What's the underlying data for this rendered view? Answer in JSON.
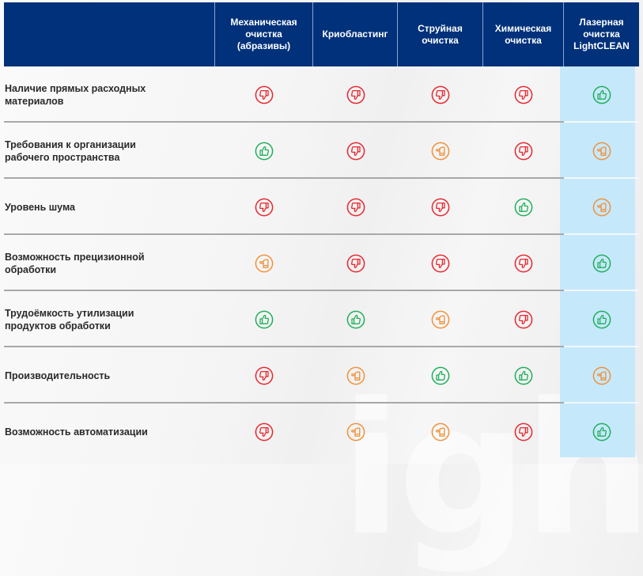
{
  "colors": {
    "header_bg": "#00317a",
    "highlight_col_bg": "#c6e8fb",
    "positive": "#1fae5b",
    "neutral": "#f0913a",
    "negative": "#e8262f"
  },
  "legend": {
    "positive": "thumbs-up",
    "neutral": "hand-sideways",
    "negative": "thumbs-down"
  },
  "header": {
    "corner": "",
    "columns": [
      "Механическая\nочистка\n(абразивы)",
      "Криобластинг",
      "Струйная\nочистка",
      "Химическая\nочистка",
      "Лазерная\nочистка\nLightCLEAN"
    ]
  },
  "rows": [
    {
      "label": "Наличие прямых расходных\nматериалов",
      "ratings": [
        "negative",
        "negative",
        "negative",
        "negative",
        "positive"
      ]
    },
    {
      "label": "Требования к организации\nрабочего пространства",
      "ratings": [
        "positive",
        "negative",
        "neutral",
        "negative",
        "neutral"
      ]
    },
    {
      "label": "Уровень шума",
      "ratings": [
        "negative",
        "negative",
        "negative",
        "positive",
        "neutral"
      ]
    },
    {
      "label": "Возможность прецизионной\nобработки",
      "ratings": [
        "neutral",
        "negative",
        "negative",
        "negative",
        "positive"
      ]
    },
    {
      "label": "Трудоёмкость утилизации\nпродуктов обработки",
      "ratings": [
        "positive",
        "positive",
        "neutral",
        "negative",
        "positive"
      ]
    },
    {
      "label": "Производительность",
      "ratings": [
        "negative",
        "neutral",
        "positive",
        "positive",
        "neutral"
      ]
    },
    {
      "label": "Возможность автоматизации",
      "ratings": [
        "negative",
        "neutral",
        "neutral",
        "negative",
        "positive"
      ]
    }
  ],
  "watermark": "ight"
}
